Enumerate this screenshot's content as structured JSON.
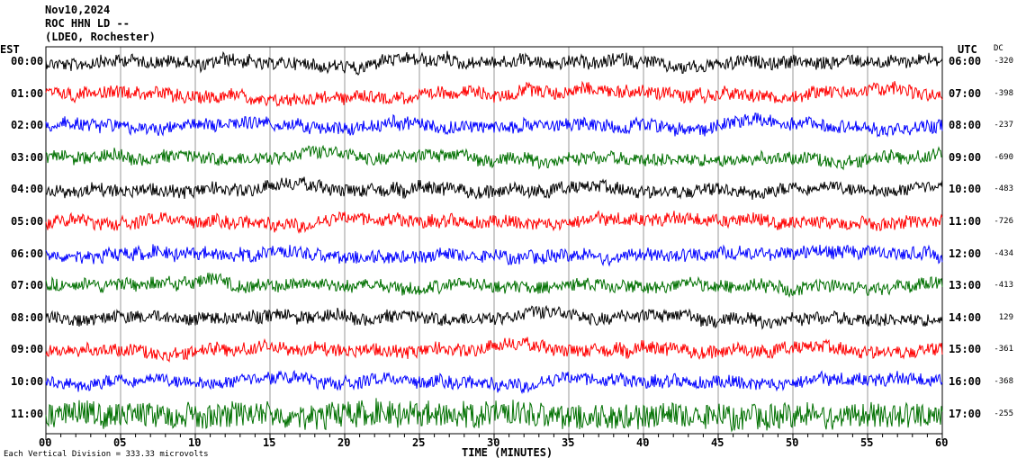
{
  "header": {
    "date": "Nov10,2024",
    "station": "ROC HHN LD --",
    "network": "(LDEO, Rochester)"
  },
  "chart_data": {
    "type": "line",
    "title": "ROC HHN LD -- Nov10,2024",
    "xlabel": "TIME (MINUTES)",
    "xlim": [
      0,
      60
    ],
    "x_ticks": [
      "00",
      "05",
      "10",
      "15",
      "20",
      "25",
      "30",
      "35",
      "40",
      "45",
      "50",
      "55",
      "60"
    ],
    "left_axis_title": "EST",
    "right_axis_title": "UTC",
    "dc_title": "DC",
    "grid": true,
    "rows": [
      {
        "est": "00:00",
        "utc": "06:00",
        "dc": "-320",
        "color": "#000000"
      },
      {
        "est": "01:00",
        "utc": "07:00",
        "dc": "-398",
        "color": "#ff0000"
      },
      {
        "est": "02:00",
        "utc": "08:00",
        "dc": "-237",
        "color": "#0000ff"
      },
      {
        "est": "03:00",
        "utc": "09:00",
        "dc": "-690",
        "color": "#007000"
      },
      {
        "est": "04:00",
        "utc": "10:00",
        "dc": "-483",
        "color": "#000000"
      },
      {
        "est": "05:00",
        "utc": "11:00",
        "dc": "-726",
        "color": "#ff0000"
      },
      {
        "est": "06:00",
        "utc": "12:00",
        "dc": "-434",
        "color": "#0000ff"
      },
      {
        "est": "07:00",
        "utc": "13:00",
        "dc": "-413",
        "color": "#007000"
      },
      {
        "est": "08:00",
        "utc": "14:00",
        "dc": "129",
        "color": "#000000"
      },
      {
        "est": "09:00",
        "utc": "15:00",
        "dc": "-361",
        "color": "#ff0000"
      },
      {
        "est": "10:00",
        "utc": "16:00",
        "dc": "-368",
        "color": "#0000ff"
      },
      {
        "est": "11:00",
        "utc": "17:00",
        "dc": "-255",
        "color": "#007000"
      }
    ]
  },
  "footer": {
    "scale_note": "Each Vertical Division = 333.33 microvolts"
  }
}
